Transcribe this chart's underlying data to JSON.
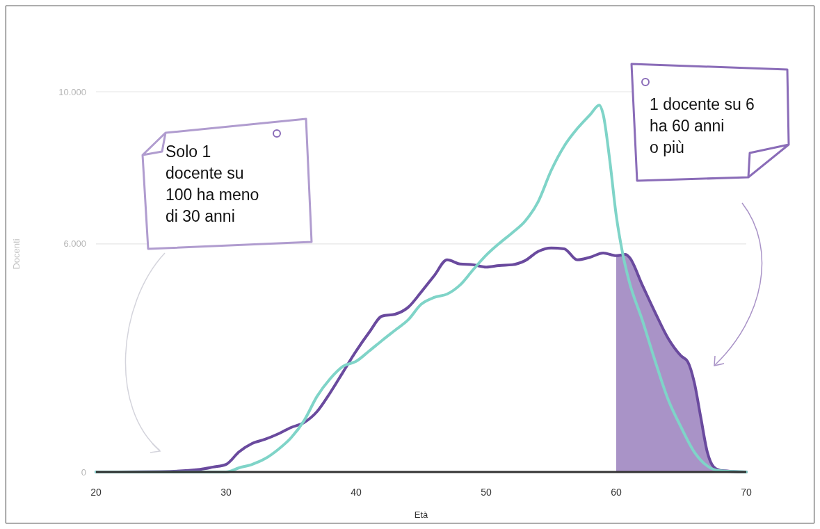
{
  "chart_data": {
    "type": "line",
    "xlabel": "Età",
    "ylabel": "Docenti",
    "xlim": [
      20,
      70
    ],
    "ylim": [
      0,
      10000
    ],
    "xticks": [
      20,
      30,
      40,
      50,
      60,
      70
    ],
    "yticks": [
      {
        "value": 0,
        "label": "0"
      },
      {
        "value": 6000,
        "label": "6.000"
      },
      {
        "value": 10000,
        "label": "10.000"
      }
    ],
    "grid": "y",
    "annotations": [
      "Solo 1\ndocente su\n100 ha meno\ndi 30 anni",
      "1 docente su 6\nha 60 anni\no più"
    ],
    "series": [
      {
        "type": "area",
        "color": "#a993c7",
        "x": [
          60,
          60.7,
          61,
          62,
          63,
          64,
          65,
          65.5,
          66,
          66.5,
          67,
          67.5,
          68,
          69,
          70
        ],
        "values": [
          5690,
          5720,
          5650,
          4920,
          4190,
          3510,
          3050,
          2900,
          2360,
          1440,
          530,
          130,
          40,
          15,
          0
        ]
      },
      {
        "color": "#6a4a9e",
        "x": [
          20,
          25,
          28,
          29,
          30,
          31,
          32,
          33,
          34,
          35,
          36,
          37,
          38,
          39,
          40,
          41,
          42,
          43,
          44,
          45,
          46,
          47,
          48,
          49,
          50,
          51,
          52,
          53,
          54,
          55,
          56,
          57,
          58,
          59,
          60,
          60.7,
          61,
          62,
          63,
          64,
          65,
          65.5,
          66,
          66.5,
          67,
          67.5,
          68,
          69,
          70
        ],
        "values": [
          0,
          10,
          70,
          130,
          200,
          530,
          750,
          860,
          1000,
          1170,
          1300,
          1590,
          2080,
          2630,
          3180,
          3670,
          4100,
          4150,
          4330,
          4730,
          5160,
          5580,
          5470,
          5450,
          5390,
          5430,
          5450,
          5560,
          5800,
          5890,
          5870,
          5580,
          5650,
          5760,
          5690,
          5720,
          5650,
          4920,
          4190,
          3510,
          3050,
          2900,
          2360,
          1440,
          530,
          130,
          40,
          15,
          0
        ]
      },
      {
        "color": "#7fd4c8",
        "x": [
          20,
          30,
          31,
          32,
          33,
          34,
          35,
          36,
          37,
          38,
          39,
          40,
          41,
          42,
          43,
          44,
          45,
          46,
          47,
          48,
          49,
          50,
          51,
          52,
          53,
          54,
          55,
          56,
          57,
          58,
          58.7,
          59,
          59.5,
          60,
          60.5,
          61,
          62,
          63,
          64,
          65,
          66,
          67,
          68,
          70
        ],
        "values": [
          0,
          0,
          110,
          200,
          350,
          590,
          900,
          1350,
          1990,
          2450,
          2780,
          2910,
          3180,
          3460,
          3730,
          4000,
          4410,
          4590,
          4680,
          4920,
          5320,
          5700,
          6010,
          6290,
          6600,
          7110,
          7930,
          8570,
          9030,
          9400,
          9650,
          9400,
          8210,
          6750,
          5740,
          5010,
          4000,
          2910,
          1900,
          1170,
          530,
          160,
          30,
          0
        ]
      }
    ]
  }
}
